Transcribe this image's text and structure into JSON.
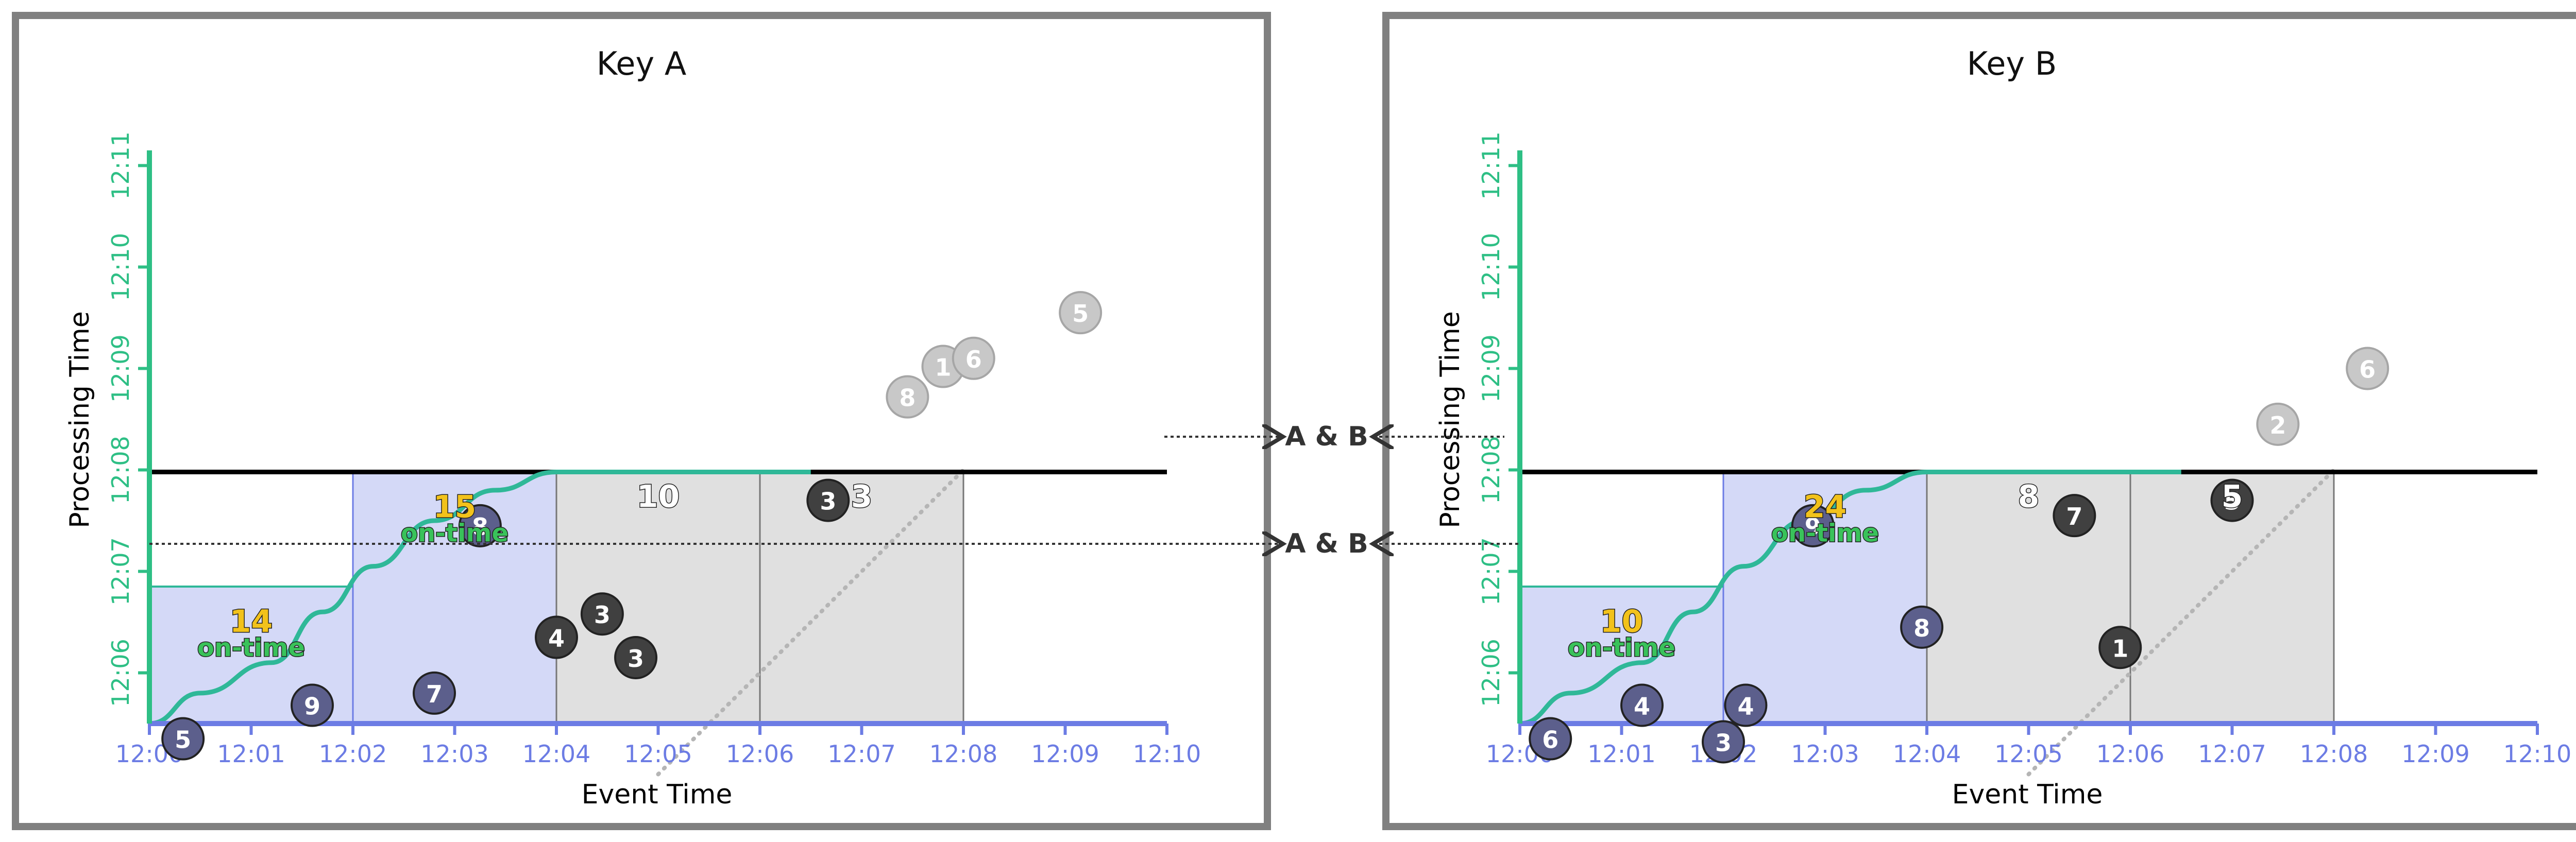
{
  "colors": {
    "event_axis": "#6c7ce4",
    "processing_axis": "#2ebf85",
    "watermark": "#2fb898",
    "on_time_pane_fill": "#d4d9f7",
    "on_time_pane_stroke": "#6c7ce4",
    "late_pane_fill": "#e0e0e0",
    "late_pane_stroke": "#777777",
    "trigger_line": "#000000",
    "on_time_point": "#5c5f8c",
    "late_point": "#404040",
    "dropped_point": "#c8c8c8",
    "on_time_value": "#f2c21b",
    "on_time_label": "#39c25a"
  },
  "shared_labels": {
    "trigger_label_top": "A & B",
    "trigger_label_bottom": "A & B"
  },
  "panels": [
    {
      "title": "Key A",
      "x_axis_title": "Event Time",
      "y_axis_title": "Processing Time",
      "x_ticks": [
        "12:00",
        "12:01",
        "12:02",
        "12:03",
        "12:04",
        "12:05",
        "12:06",
        "12:07",
        "12:08",
        "12:09",
        "12:10"
      ],
      "y_ticks": [
        "12:06",
        "12:07",
        "12:08",
        "12:09",
        "12:10",
        "12:11"
      ],
      "panes": [
        {
          "kind": "on-time",
          "start_min": 0,
          "end_min": 2,
          "top_min": 6.85,
          "value": "14",
          "on_time_text": "on-time"
        },
        {
          "kind": "on-time",
          "start_min": 2,
          "end_min": 4,
          "top_min": 7.98,
          "value": "15",
          "on_time_text": "on-time"
        },
        {
          "kind": "late",
          "start_min": 4,
          "end_min": 6,
          "top_min": 7.98,
          "value": "10"
        },
        {
          "kind": "late",
          "start_min": 6,
          "end_min": 8,
          "top_min": 7.98,
          "value": "3"
        }
      ],
      "trigger_lines_min": [
        6.85,
        7.98
      ],
      "watermark": [
        [
          0,
          5.5
        ],
        [
          0.5,
          5.8
        ],
        [
          1.2,
          6.1
        ],
        [
          1.7,
          6.6
        ],
        [
          2.2,
          7.05
        ],
        [
          2.8,
          7.5
        ],
        [
          3.4,
          7.8
        ],
        [
          4,
          7.98
        ],
        [
          6.5,
          7.98
        ]
      ],
      "ideal_line": [
        [
          5.0,
          5.0
        ],
        [
          8.0,
          8.0
        ]
      ],
      "points": [
        {
          "x": 0.33,
          "y": 5.35,
          "value": "5",
          "state": "on-time"
        },
        {
          "x": 1.6,
          "y": 5.68,
          "value": "9",
          "state": "on-time"
        },
        {
          "x": 2.8,
          "y": 5.8,
          "value": "7",
          "state": "on-time"
        },
        {
          "x": 3.25,
          "y": 7.45,
          "value": "8",
          "state": "on-time"
        },
        {
          "x": 4.0,
          "y": 6.35,
          "value": "4",
          "state": "late"
        },
        {
          "x": 4.45,
          "y": 6.58,
          "value": "3",
          "state": "late"
        },
        {
          "x": 4.78,
          "y": 6.15,
          "value": "3",
          "state": "late"
        },
        {
          "x": 6.67,
          "y": 7.7,
          "value": "3",
          "state": "late"
        },
        {
          "x": 7.45,
          "y": 8.72,
          "value": "8",
          "state": "dropped"
        },
        {
          "x": 7.8,
          "y": 9.02,
          "value": "1",
          "state": "dropped"
        },
        {
          "x": 8.1,
          "y": 9.1,
          "value": "6",
          "state": "dropped"
        },
        {
          "x": 9.15,
          "y": 9.55,
          "value": "5",
          "state": "dropped"
        }
      ]
    },
    {
      "title": "Key B",
      "x_axis_title": "Event Time",
      "y_axis_title": "Processing Time",
      "x_ticks": [
        "12:00",
        "12:01",
        "12:02",
        "12:03",
        "12:04",
        "12:05",
        "12:06",
        "12:07",
        "12:08",
        "12:09",
        "12:10"
      ],
      "y_ticks": [
        "12:06",
        "12:07",
        "12:08",
        "12:09",
        "12:10",
        "12:11"
      ],
      "panes": [
        {
          "kind": "on-time",
          "start_min": 0,
          "end_min": 2,
          "top_min": 6.85,
          "value": "10",
          "on_time_text": "on-time"
        },
        {
          "kind": "on-time",
          "start_min": 2,
          "end_min": 4,
          "top_min": 7.98,
          "value": "24",
          "on_time_text": "on-time"
        },
        {
          "kind": "late",
          "start_min": 4,
          "end_min": 6,
          "top_min": 7.98,
          "value": "8"
        },
        {
          "kind": "late",
          "start_min": 6,
          "end_min": 8,
          "top_min": 7.98,
          "value": "5"
        }
      ],
      "trigger_lines_min": [
        6.85,
        7.98
      ],
      "watermark": [
        [
          0,
          5.5
        ],
        [
          0.5,
          5.8
        ],
        [
          1.2,
          6.1
        ],
        [
          1.7,
          6.6
        ],
        [
          2.2,
          7.05
        ],
        [
          2.8,
          7.5
        ],
        [
          3.4,
          7.8
        ],
        [
          4,
          7.98
        ],
        [
          6.5,
          7.98
        ]
      ],
      "ideal_line": [
        [
          5.0,
          5.0
        ],
        [
          8.0,
          8.0
        ]
      ],
      "points": [
        {
          "x": 0.3,
          "y": 5.35,
          "value": "6",
          "state": "on-time"
        },
        {
          "x": 1.2,
          "y": 5.68,
          "value": "4",
          "state": "on-time"
        },
        {
          "x": 2.0,
          "y": 5.32,
          "value": "3",
          "state": "on-time"
        },
        {
          "x": 2.22,
          "y": 5.68,
          "value": "4",
          "state": "on-time"
        },
        {
          "x": 2.88,
          "y": 7.45,
          "value": "9",
          "state": "on-time"
        },
        {
          "x": 3.95,
          "y": 6.45,
          "value": "8",
          "state": "on-time"
        },
        {
          "x": 5.45,
          "y": 7.55,
          "value": "7",
          "state": "late"
        },
        {
          "x": 5.9,
          "y": 6.25,
          "value": "1",
          "state": "late"
        },
        {
          "x": 7.0,
          "y": 7.7,
          "value": "5",
          "state": "late"
        },
        {
          "x": 7.45,
          "y": 8.45,
          "value": "2",
          "state": "dropped"
        },
        {
          "x": 8.33,
          "y": 9.0,
          "value": "6",
          "state": "dropped"
        }
      ]
    }
  ]
}
